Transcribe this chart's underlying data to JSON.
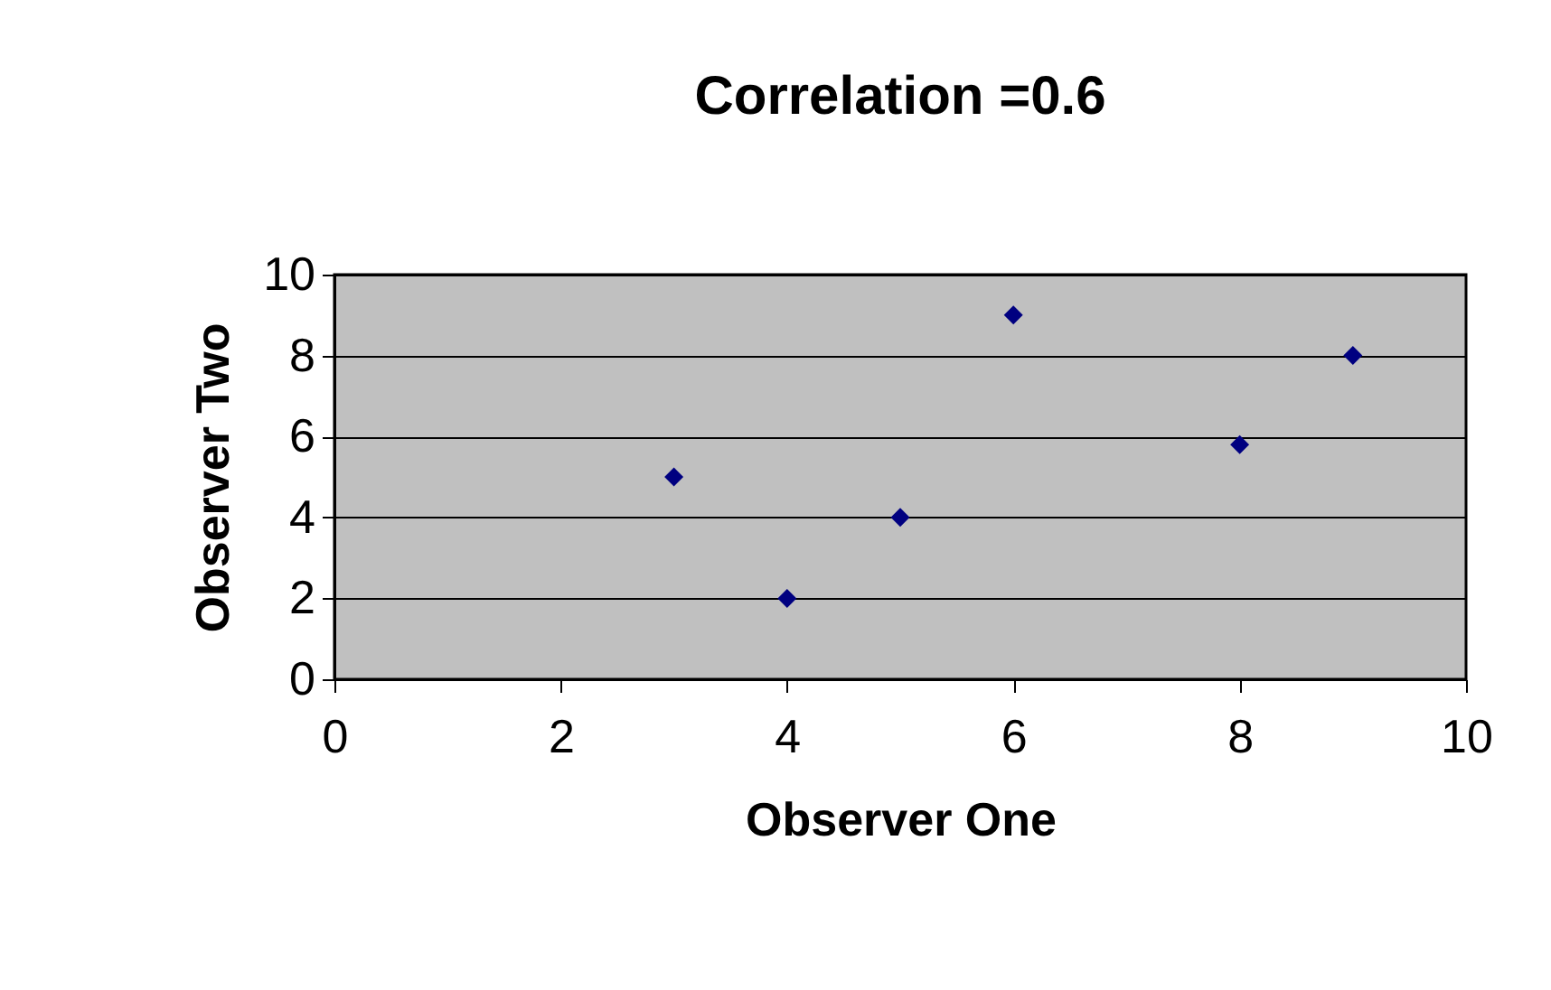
{
  "chart_data": {
    "type": "scatter",
    "title": "Correlation =0.6",
    "xlabel": "Observer One",
    "ylabel": "Observer Two",
    "x": [
      3,
      4,
      5,
      6,
      8,
      9
    ],
    "series": [
      {
        "color": "#000080",
        "values": [
          5,
          2,
          4,
          9,
          5.8,
          8
        ]
      }
    ],
    "xlim": [
      0,
      10
    ],
    "ylim": [
      0,
      10
    ],
    "xticks": [
      0,
      2,
      4,
      6,
      8,
      10
    ],
    "yticks": [
      0,
      2,
      4,
      6,
      8,
      10
    ],
    "grid": "y",
    "marker": "diamond",
    "legend": false
  }
}
